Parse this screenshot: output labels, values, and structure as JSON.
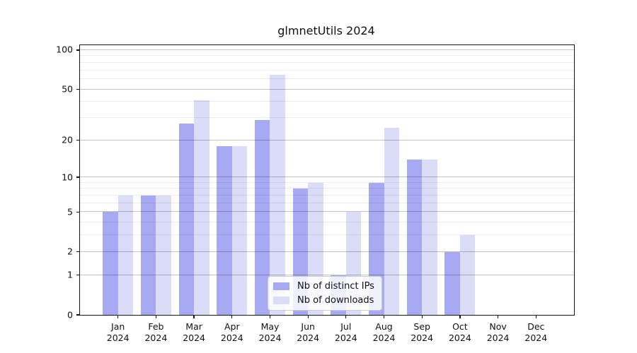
{
  "chart_data": {
    "type": "bar",
    "title": "glmnetUtils 2024",
    "year": "2024",
    "months": [
      "Jan",
      "Feb",
      "Mar",
      "Apr",
      "May",
      "Jun",
      "Jul",
      "Aug",
      "Sep",
      "Oct",
      "Nov",
      "Dec"
    ],
    "categories": [
      "Jan 2024",
      "Feb 2024",
      "Mar 2024",
      "Apr 2024",
      "May 2024",
      "Jun 2024",
      "Jul 2024",
      "Aug 2024",
      "Sep 2024",
      "Oct 2024",
      "Nov 2024",
      "Dec 2024"
    ],
    "series": [
      {
        "key": "distinct-ips",
        "name": "Nb of distinct IPs",
        "color": "#a7a9f3",
        "values": [
          5,
          7,
          27,
          18,
          29,
          8,
          1,
          9,
          14,
          2,
          0,
          0
        ]
      },
      {
        "key": "downloads",
        "name": "Nb of downloads",
        "color": "#dbdcf8",
        "values": [
          7,
          7,
          41,
          18,
          65,
          9,
          5,
          25,
          14,
          3,
          0,
          0
        ]
      }
    ],
    "yscale": "log1p",
    "ylabel": "",
    "xlabel": "",
    "y_axis": {
      "ticks": [
        0,
        1,
        2,
        5,
        10,
        20,
        50,
        100
      ],
      "minor_gridlines": [
        3,
        4,
        6,
        7,
        8,
        9,
        30,
        40,
        60,
        70,
        80,
        90
      ],
      "max": 109
    },
    "grid": true,
    "legend": {
      "position": "bottom-center"
    },
    "colors": {
      "frame": "#151515",
      "background": "#ffffff"
    }
  }
}
